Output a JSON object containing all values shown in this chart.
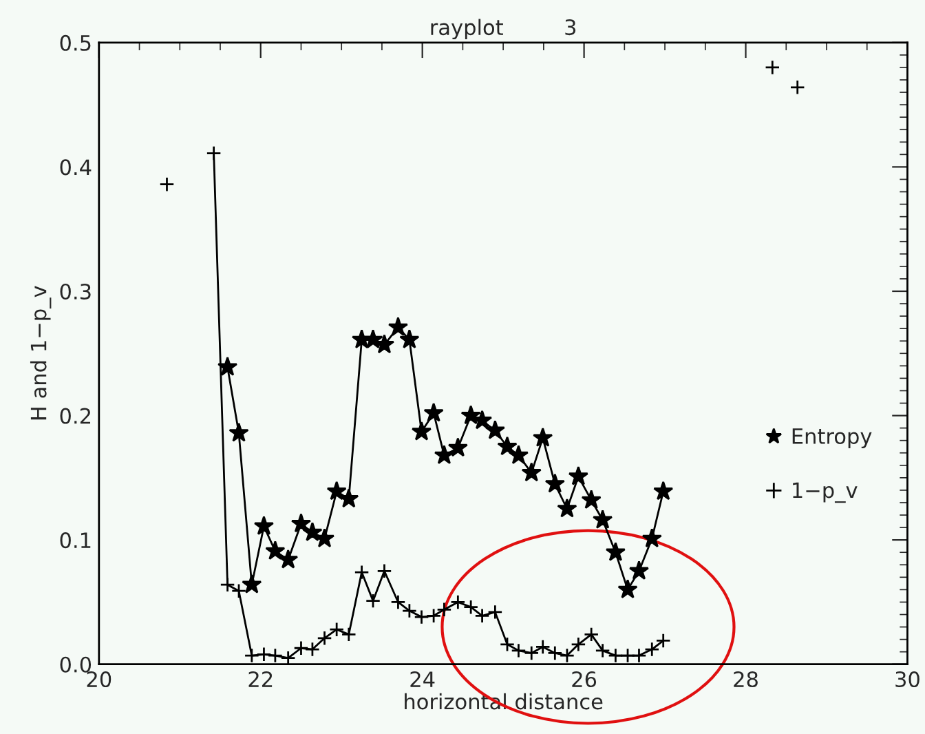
{
  "chart_data": {
    "type": "line",
    "title": "rayplot         3",
    "xlabel": "horizontal distance",
    "ylabel": "H and 1−p_v",
    "xlim": [
      20,
      30
    ],
    "xticks": [
      20,
      22,
      24,
      26,
      28,
      30
    ],
    "ylim": [
      0,
      0.5
    ],
    "yticks": [
      {
        "value": 0,
        "label": "0.0"
      },
      {
        "value": 0.1,
        "label": "0.1"
      },
      {
        "value": 0.2,
        "label": "0.2"
      },
      {
        "value": 0.3,
        "label": "0.3"
      },
      {
        "value": 0.4,
        "label": "0.4"
      },
      {
        "value": 0.5,
        "label": "0.5"
      }
    ],
    "grid": false,
    "legend": "right",
    "line_style": "solid",
    "series": [
      {
        "name": "Entropy",
        "color": "#000000",
        "marker": "star",
        "x": [
          21.59,
          21.73,
          21.89,
          22.04,
          22.18,
          22.34,
          22.5,
          22.64,
          22.79,
          22.94,
          23.09,
          23.25,
          23.39,
          23.53,
          23.7,
          23.84,
          23.99,
          24.14,
          24.27,
          24.44,
          24.6,
          24.74,
          24.9,
          25.05,
          25.19,
          25.35,
          25.49,
          25.64,
          25.79,
          25.93,
          26.09,
          26.23,
          26.39,
          26.54,
          26.68,
          26.84,
          26.98
        ],
        "values": [
          0.239,
          0.186,
          0.064,
          0.111,
          0.091,
          0.084,
          0.113,
          0.106,
          0.101,
          0.139,
          0.133,
          0.261,
          0.261,
          0.257,
          0.271,
          0.261,
          0.187,
          0.202,
          0.168,
          0.174,
          0.2,
          0.196,
          0.188,
          0.175,
          0.168,
          0.154,
          0.182,
          0.145,
          0.125,
          0.151,
          0.132,
          0.116,
          0.09,
          0.06,
          0.075,
          0.101,
          0.139
        ]
      },
      {
        "name": "1−p_v",
        "color": "#000000",
        "marker": "cross",
        "x": [
          20.84,
          21.1,
          21.42,
          21.59,
          21.73,
          21.89,
          22.04,
          22.18,
          22.34,
          22.5,
          22.64,
          22.79,
          22.94,
          23.09,
          23.25,
          23.39,
          23.53,
          23.7,
          23.84,
          23.99,
          24.14,
          24.27,
          24.44,
          24.6,
          24.74,
          24.9,
          25.05,
          25.19,
          25.35,
          25.49,
          25.64,
          25.79,
          25.93,
          26.09,
          26.23,
          26.39,
          26.54,
          26.68,
          26.84,
          26.98,
          27.5,
          28.33,
          28.5,
          28.64
        ],
        "values": [
          0.386,
          null,
          0.411,
          0.064,
          0.059,
          0.007,
          0.008,
          0.007,
          0.005,
          0.013,
          0.012,
          0.021,
          0.028,
          0.024,
          0.074,
          0.051,
          0.075,
          0.05,
          0.043,
          0.038,
          0.039,
          0.044,
          0.05,
          0.046,
          0.039,
          0.042,
          0.016,
          0.011,
          0.009,
          0.014,
          0.009,
          0.007,
          0.016,
          0.024,
          0.011,
          0.007,
          0.007,
          0.007,
          0.012,
          0.019,
          null,
          0.48,
          null,
          0.464
        ]
      }
    ]
  }
}
